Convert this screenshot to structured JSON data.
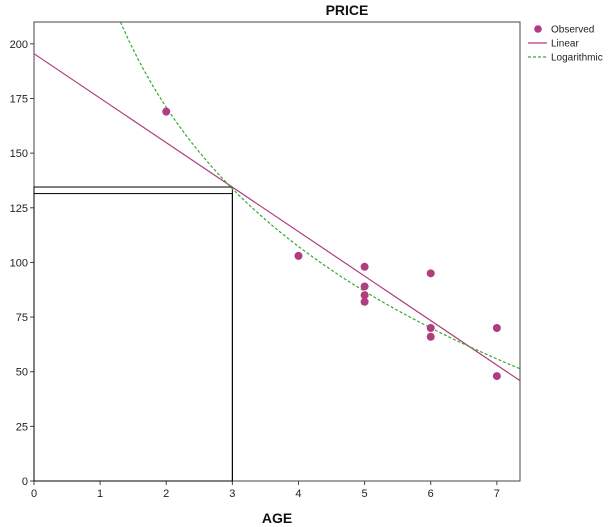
{
  "chart_data": {
    "type": "scatter",
    "title": "PRICE",
    "xlabel": "AGE",
    "ylabel": "",
    "xlim": [
      0,
      7.35
    ],
    "ylim": [
      0,
      210
    ],
    "x_ticks": [
      0,
      1,
      2,
      3,
      4,
      5,
      6,
      7
    ],
    "y_ticks": [
      0,
      25,
      50,
      75,
      100,
      125,
      150,
      175,
      200
    ],
    "grid": false,
    "legend_position": "top-right",
    "series": [
      {
        "name": "Observed",
        "kind": "points",
        "color": "#b03d7f",
        "points": [
          {
            "x": 2,
            "y": 169
          },
          {
            "x": 4,
            "y": 103
          },
          {
            "x": 5,
            "y": 98
          },
          {
            "x": 5,
            "y": 89
          },
          {
            "x": 5,
            "y": 85
          },
          {
            "x": 5,
            "y": 82
          },
          {
            "x": 6,
            "y": 95
          },
          {
            "x": 6,
            "y": 70
          },
          {
            "x": 6,
            "y": 66
          },
          {
            "x": 7,
            "y": 70
          },
          {
            "x": 7,
            "y": 48
          }
        ]
      },
      {
        "name": "Linear",
        "kind": "line",
        "color": "#b03d7f",
        "intercept": 195.5,
        "slope": -20.35
      },
      {
        "name": "Logarithmic",
        "kind": "curve",
        "color": "#33aa33",
        "intercept": 234.7,
        "coef": -91.9
      }
    ],
    "annotations": [
      {
        "kind": "reference-box",
        "x_from": 0,
        "x_to": 3,
        "y_from": 0,
        "y_to": 131.5
      },
      {
        "kind": "reference-box",
        "x_from": 0,
        "x_to": 3,
        "y_from": 0,
        "y_to": 134.5
      }
    ],
    "legend": [
      {
        "label": "Observed",
        "symbol": "dot",
        "color": "#b03d7f"
      },
      {
        "label": "Linear",
        "symbol": "solid",
        "color": "#b03d7f"
      },
      {
        "label": "Logarithmic",
        "symbol": "dashed",
        "color": "#33aa33"
      }
    ]
  }
}
